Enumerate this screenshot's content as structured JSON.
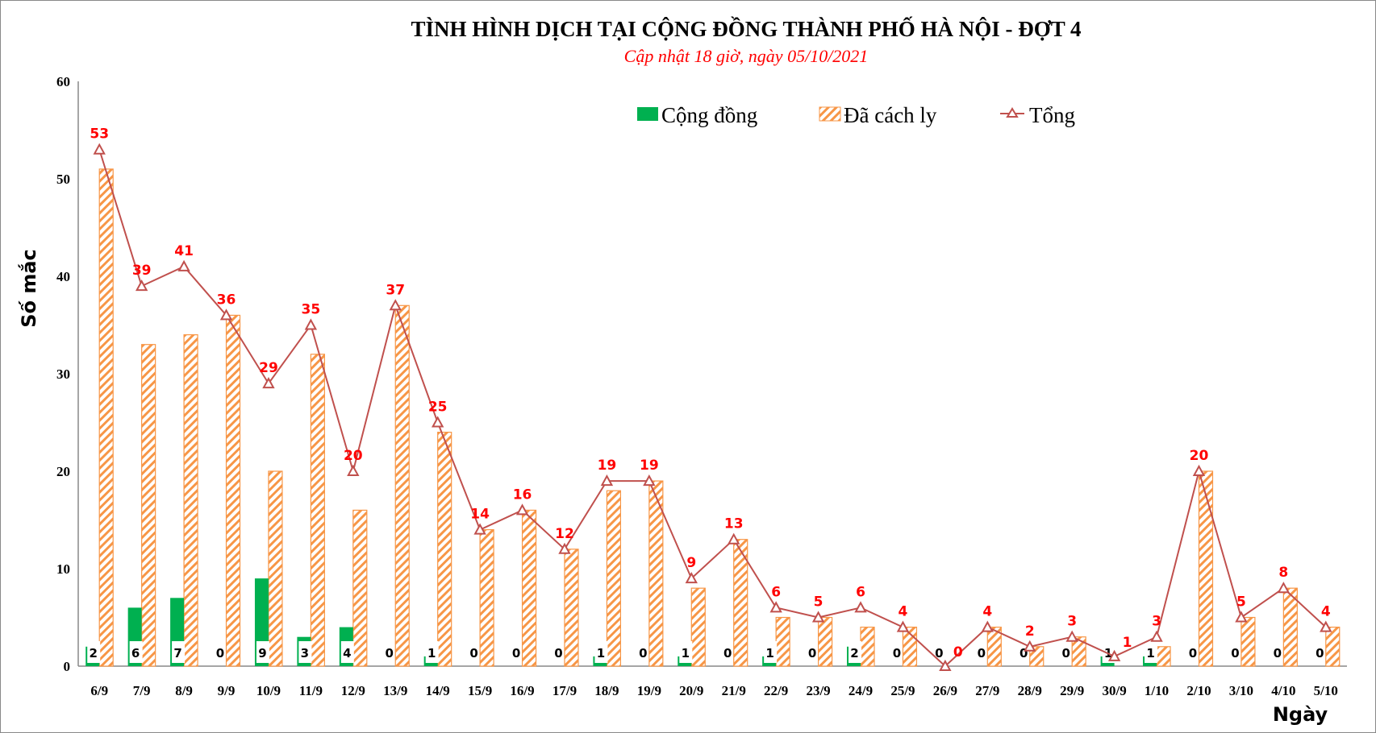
{
  "chart_data": {
    "type": "bar",
    "title": "TÌNH HÌNH DỊCH TẠI CỘNG ĐỒNG THÀNH PHỐ HÀ NỘI - ĐỢT 4",
    "subtitle": "Cập nhật 18 giờ, ngày 05/10/2021",
    "xlabel": "Ngày",
    "ylabel": "Số mắc",
    "ylim": [
      0,
      60
    ],
    "yticks": [
      0,
      10,
      20,
      30,
      40,
      50,
      60
    ],
    "legend_position": "top-right",
    "categories": [
      "6/9",
      "7/9",
      "8/9",
      "9/9",
      "10/9",
      "11/9",
      "12/9",
      "13/9",
      "14/9",
      "15/9",
      "16/9",
      "17/9",
      "18/9",
      "19/9",
      "20/9",
      "21/9",
      "22/9",
      "23/9",
      "24/9",
      "25/9",
      "26/9",
      "27/9",
      "28/9",
      "29/9",
      "30/9",
      "1/10",
      "2/10",
      "3/10",
      "4/10",
      "5/10"
    ],
    "series": [
      {
        "name": "Cộng đồng",
        "type": "bar",
        "color": "#00b050",
        "values": [
          2,
          6,
          7,
          0,
          9,
          3,
          4,
          0,
          1,
          0,
          0,
          0,
          1,
          0,
          1,
          0,
          1,
          0,
          2,
          0,
          0,
          0,
          0,
          0,
          1,
          1,
          0,
          0,
          0,
          0
        ]
      },
      {
        "name": "Đã cách ly",
        "type": "bar",
        "color": "#f79646",
        "pattern": "diagonal-hatch",
        "values": [
          51,
          33,
          34,
          36,
          20,
          32,
          16,
          37,
          24,
          14,
          16,
          12,
          18,
          19,
          8,
          13,
          5,
          5,
          4,
          4,
          0,
          4,
          2,
          3,
          0,
          2,
          20,
          5,
          8,
          4
        ]
      },
      {
        "name": "Tổng",
        "type": "line",
        "color": "#c0504d",
        "marker": "triangle",
        "values": [
          53,
          39,
          41,
          36,
          29,
          35,
          20,
          37,
          25,
          14,
          16,
          12,
          19,
          19,
          9,
          13,
          6,
          5,
          6,
          4,
          0,
          4,
          2,
          3,
          1,
          3,
          20,
          5,
          8,
          4
        ]
      }
    ]
  }
}
